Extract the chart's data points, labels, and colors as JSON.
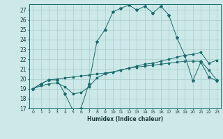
{
  "title": "",
  "xlabel": "Humidex (Indice chaleur)",
  "bg_color": "#cce8e8",
  "grid_color": "#aacccc",
  "line_color": "#1a6b6b",
  "xlim": [
    -0.5,
    23.5
  ],
  "ylim": [
    17,
    27.6
  ],
  "yticks": [
    17,
    18,
    19,
    20,
    21,
    22,
    23,
    24,
    25,
    26,
    27
  ],
  "xticks": [
    0,
    1,
    2,
    3,
    4,
    5,
    6,
    7,
    8,
    9,
    10,
    11,
    12,
    13,
    14,
    15,
    16,
    17,
    18,
    19,
    20,
    21,
    22,
    23
  ],
  "line1_x": [
    0,
    1,
    2,
    3,
    4,
    5,
    6,
    7,
    8,
    9,
    10,
    11,
    12,
    13,
    14,
    15,
    16,
    17,
    18,
    19,
    20,
    21,
    22,
    23
  ],
  "line1_y": [
    19.0,
    19.5,
    19.9,
    19.9,
    18.5,
    16.8,
    17.0,
    19.5,
    23.8,
    25.0,
    26.8,
    27.2,
    27.5,
    27.0,
    27.4,
    26.7,
    27.4,
    26.5,
    24.2,
    22.4,
    19.8,
    21.7,
    20.2,
    19.8
  ],
  "line2_x": [
    0,
    1,
    2,
    3,
    4,
    5,
    6,
    7,
    8,
    9,
    10,
    11,
    12,
    13,
    14,
    15,
    16,
    17,
    18,
    19,
    20,
    21,
    22,
    23
  ],
  "line2_y": [
    19.0,
    19.5,
    19.9,
    20.0,
    20.1,
    20.2,
    20.3,
    20.4,
    20.5,
    20.6,
    20.7,
    20.9,
    21.1,
    21.3,
    21.5,
    21.6,
    21.8,
    22.0,
    22.2,
    22.4,
    22.5,
    22.7,
    21.6,
    21.9
  ],
  "line3_x": [
    0,
    1,
    2,
    3,
    4,
    5,
    6,
    7,
    8,
    9,
    10,
    11,
    12,
    13,
    14,
    15,
    16,
    17,
    18,
    19,
    20,
    21,
    22,
    23
  ],
  "line3_y": [
    19.0,
    19.3,
    19.5,
    19.6,
    19.2,
    18.5,
    18.6,
    19.2,
    20.1,
    20.5,
    20.7,
    20.9,
    21.1,
    21.2,
    21.3,
    21.4,
    21.5,
    21.6,
    21.7,
    21.8,
    21.8,
    21.8,
    20.9,
    19.9
  ]
}
